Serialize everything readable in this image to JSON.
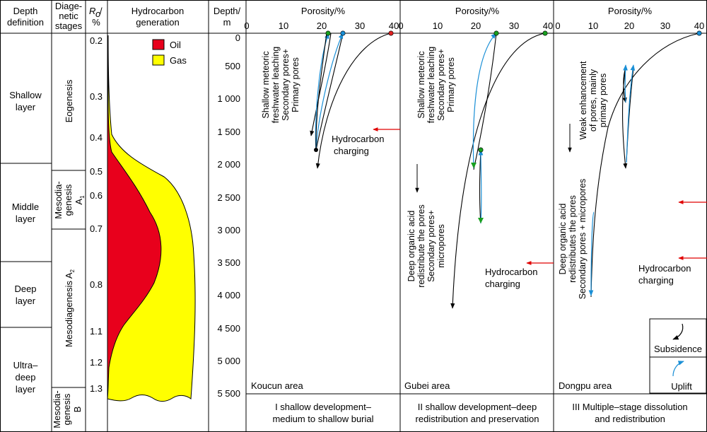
{
  "header": {
    "depth_definition": [
      "Depth",
      "definition"
    ],
    "diagenetic_stages": [
      "Diage-",
      "netic",
      "stages"
    ],
    "ro_top": "R",
    "ro_sub": "o",
    "ro_unit": "%",
    "hydrocarbon_generation": [
      "Hydrocarbon",
      "generation"
    ],
    "depth_m": [
      "Depth/",
      "m"
    ]
  },
  "depth_layers": [
    "Shallow layer",
    "Middle layer",
    "Deep layer",
    "Ultra-deep layer"
  ],
  "stages": {
    "eogenesis": "Eogenesis",
    "mesodiagenesis_a1": "Mesodia-genesis A1",
    "mesodiagenesis_a2": "Mesodiagenesis A2",
    "mesodiagenesis_b": "Mesodia-genesis B"
  },
  "ro_ticks": [
    "0.2",
    "0.3",
    "0.4",
    "0.5",
    "0.6",
    "0.7",
    "0.8",
    "1.1",
    "1.2",
    "1.3"
  ],
  "legend": {
    "oil": "Oil",
    "gas": "Gas",
    "oil_color": "#e8001c",
    "gas_color": "#ffff00"
  },
  "depth_ticks": [
    "0",
    "500",
    "1 000",
    "1 500",
    "2 000",
    "2 500",
    "3 000",
    "3 500",
    "4 000",
    "4 500",
    "5 000",
    "5 500"
  ],
  "porosity": {
    "axis_title": "Porosity/%",
    "ticks": [
      "0",
      "10",
      "20",
      "30",
      "40"
    ]
  },
  "panels": [
    {
      "area": "Koucun area",
      "caption": [
        "I shallow development–",
        "medium to shallow burial"
      ],
      "notes": [
        "Shallow meteoric",
        "freshwater leaching",
        "Secondary pores+",
        "Primary pores"
      ],
      "charging": [
        "Hydrocarbon",
        "charging"
      ]
    },
    {
      "area": "Gubei area",
      "caption": [
        "II shallow development–deep",
        "redistribution and preservation"
      ],
      "notes": [
        "Shallow meteoric",
        "freshwater leaching",
        "Secondary pores+",
        "Primary pores"
      ],
      "notes2": [
        "Deep organic acid",
        "redistribute the pores",
        "Secondary pores+",
        "micropores"
      ],
      "charging": [
        "Hydrocarbon",
        "charging"
      ]
    },
    {
      "area": "Dongpu area",
      "caption": [
        "III Multiple–stage dissolution",
        "and redistribution"
      ],
      "notes": [
        "Weak enhancement",
        "of pores, mainly",
        "primary pores"
      ],
      "notes2": [
        "Deep organic acid",
        "redistributes the pores",
        "Secondary pores + micropores"
      ],
      "charging": [
        "Hydrocarbon",
        "charging"
      ]
    }
  ],
  "path_legend": {
    "subsidence": "Subsidence",
    "uplift": "Uplift"
  },
  "colors": {
    "charging_arrow": "#e00000",
    "uplift_path": "#1a8fd6",
    "dot_red": "#e02020",
    "dot_green": "#19a020",
    "dot_blue": "#1a8fd6"
  }
}
